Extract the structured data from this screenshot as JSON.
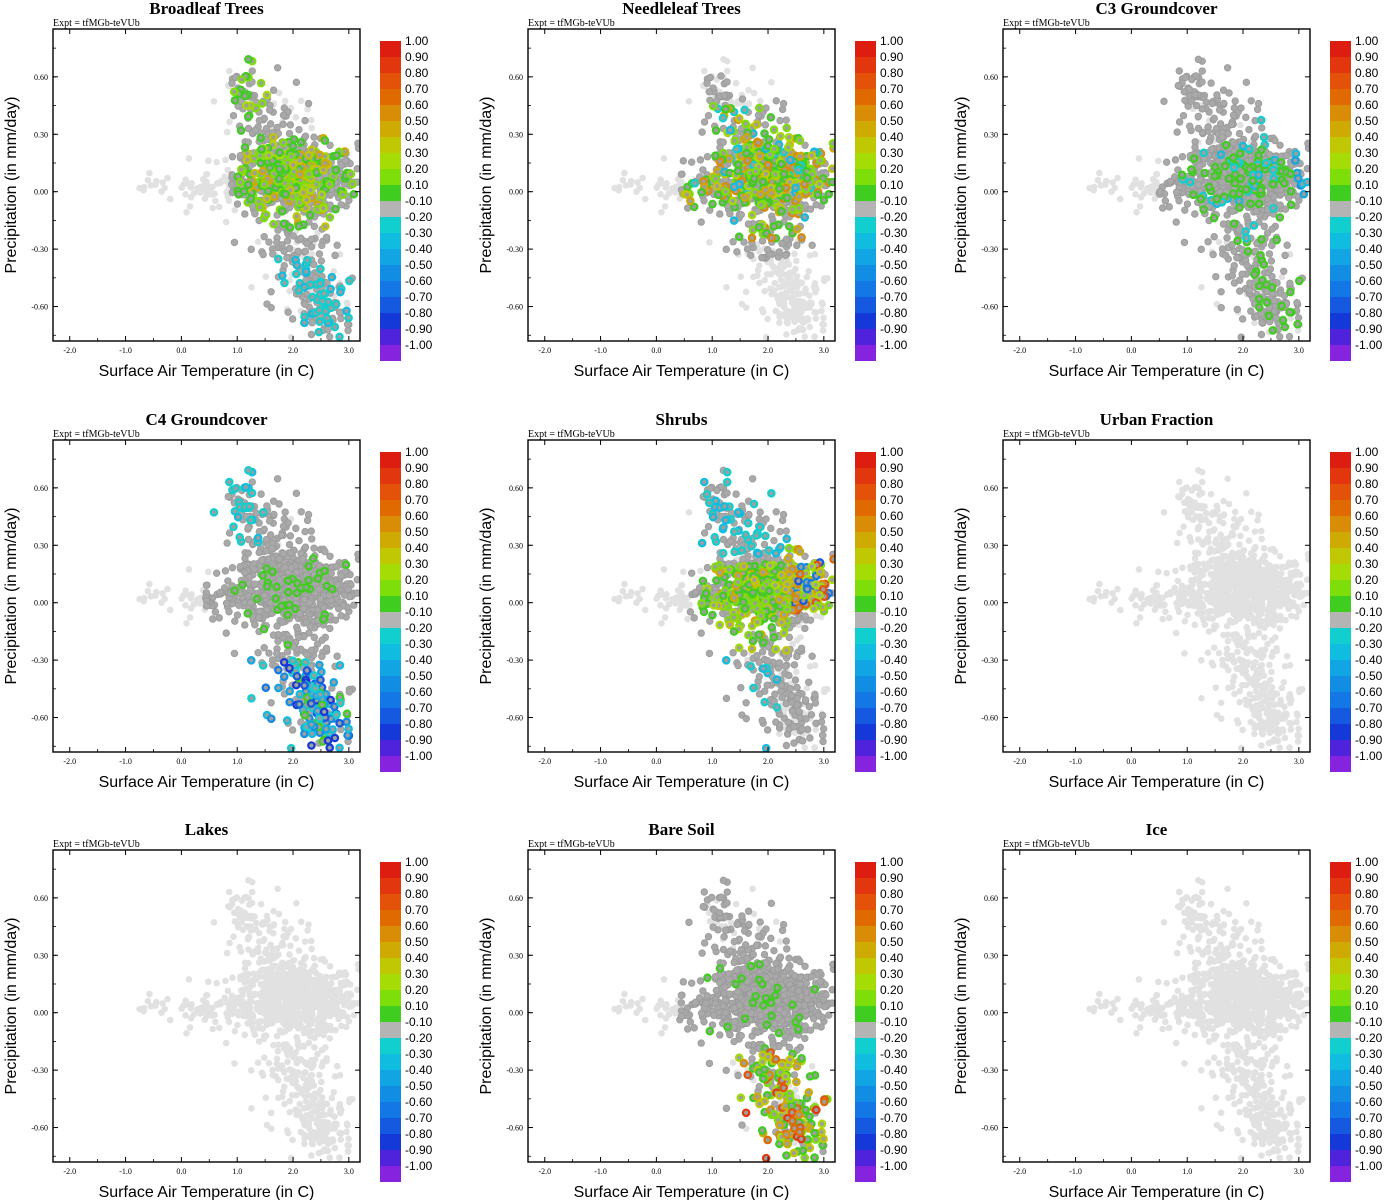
{
  "chart_data": {
    "type": "scatter",
    "layout": "3x3 grid",
    "experiment_label": "Expt = tfMGb-teVUb",
    "xlabel": "Surface Air Temperature (in C)",
    "ylabel": "Precipitation (in mm/day)",
    "xlim": [
      -2.3,
      3.2
    ],
    "ylim": [
      -0.78,
      0.85
    ],
    "x_ticks": [
      -2.0,
      -1.0,
      0.0,
      1.0,
      2.0,
      3.0
    ],
    "x_tick_labels": [
      "-2.0",
      "-1.0",
      "0.0",
      "1.0",
      "2.0",
      "3.0"
    ],
    "y_ticks": [
      0.6,
      0.3,
      0.0,
      -0.3,
      -0.6
    ],
    "y_tick_labels": [
      "0.60",
      "0.30",
      "0.00",
      "-0.30",
      "-0.60"
    ],
    "colorbar": {
      "labels": [
        "1.00",
        "0.90",
        "0.80",
        "0.70",
        "0.60",
        "0.50",
        "0.40",
        "0.30",
        "0.20",
        "0.10",
        "-0.10",
        "-0.20",
        "-0.30",
        "-0.40",
        "-0.50",
        "-0.60",
        "-0.70",
        "-0.80",
        "-0.90",
        "-1.00"
      ],
      "colors": [
        "#dd1d10",
        "#e2370e",
        "#e4520a",
        "#e06a00",
        "#d98c06",
        "#cfaa02",
        "#bfc803",
        "#a6dc06",
        "#7ede0a",
        "#3fcd1f",
        "#b4b4b4",
        "#12cfcf",
        "#10bde0",
        "#11a6e3",
        "#118de3",
        "#1377e5",
        "#1459e0",
        "#1539d8",
        "#4f23dc",
        "#8523df"
      ]
    },
    "panels": [
      {
        "title": "Broadleaf Trees",
        "pattern": "broadleaf"
      },
      {
        "title": "Needleleaf Trees",
        "pattern": "needleleaf"
      },
      {
        "title": "C3 Groundcover",
        "pattern": "c3"
      },
      {
        "title": "C4 Groundcover",
        "pattern": "c4"
      },
      {
        "title": "Shrubs",
        "pattern": "shrubs"
      },
      {
        "title": "Urban Fraction",
        "pattern": "none"
      },
      {
        "title": "Lakes",
        "pattern": "none"
      },
      {
        "title": "Bare Soil",
        "pattern": "baresoil"
      },
      {
        "title": "Ice",
        "pattern": "none"
      }
    ]
  }
}
